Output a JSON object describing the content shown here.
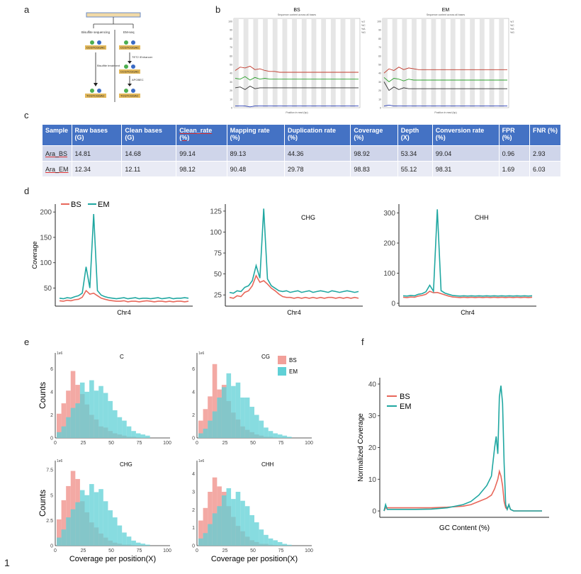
{
  "panels": {
    "a": "a",
    "b": "b",
    "c": "c",
    "d": "d",
    "e": "e",
    "f": "f"
  },
  "footnote": "1",
  "panel_a": {
    "left_title": "Bisulfite sequencing",
    "right_title": "EM-seq",
    "left_step": "Bisulfite treatment",
    "right_step1": "TET2 /Enhancer",
    "right_step2": "APOBEC",
    "seq1": "CCGTCGGAC",
    "seq2": "CCGTCGGAC",
    "seq3": "CCGTCGGAC",
    "seq4": "TCGTCGGAC",
    "seq5": "TCGTCGGAC"
  },
  "table": {
    "headers": [
      "Sample",
      "Raw bases (G)",
      "Clean bases (G)",
      "Clean_rate (%)",
      "Mapping rate (%)",
      "Duplication rate (%)",
      "Coverage (%)",
      "Depth (X)",
      "Conversion rate (%)",
      "FPR (%)",
      "FNR (%)"
    ],
    "rows": [
      [
        "Ara_BS",
        "14.81",
        "14.68",
        "99.14",
        "89.13",
        "44.36",
        "98.92",
        "53.34",
        "99.04",
        "0.96",
        "2.93"
      ],
      [
        "Ara_EM",
        "12.34",
        "12.11",
        "98.12",
        "90.48",
        "29.78",
        "98.83",
        "55.12",
        "98.31",
        "1.69",
        "6.03"
      ]
    ]
  },
  "chart_data": [
    {
      "panel": "b",
      "type": "line",
      "title": "BS",
      "subtitle": "Sequence content across all bases",
      "xlabel": "Position in read (bp)",
      "yticks": [
        "100",
        "90",
        "80",
        "70",
        "60",
        "50",
        "40",
        "30",
        "20",
        "10",
        "0"
      ],
      "ylim": [
        0,
        100
      ],
      "legend": [
        "%T",
        "%C",
        "%A",
        "%G"
      ],
      "series": [
        {
          "name": "red",
          "color": "#c0392b",
          "values": [
            43,
            47,
            46,
            48,
            44,
            45,
            43,
            42,
            42,
            41,
            41,
            41,
            41,
            41,
            41,
            41,
            41,
            41,
            41,
            41,
            41,
            41,
            41,
            41,
            41,
            41
          ]
        },
        {
          "name": "green",
          "color": "#2ca02c",
          "values": [
            34,
            33,
            36,
            32,
            35,
            33,
            34,
            33,
            33,
            33,
            33,
            33,
            33,
            33,
            33,
            33,
            33,
            33,
            33,
            33,
            33,
            33,
            33,
            33,
            33,
            33
          ]
        },
        {
          "name": "black",
          "color": "#333333",
          "values": [
            23,
            24,
            21,
            25,
            22,
            23,
            23,
            23,
            23,
            23,
            23,
            23,
            23,
            23,
            23,
            23,
            23,
            23,
            23,
            23,
            23,
            23,
            23,
            23,
            23,
            23
          ]
        },
        {
          "name": "blue",
          "color": "#2b3fb5",
          "values": [
            2,
            2,
            2,
            1,
            2,
            2,
            2,
            2,
            2,
            2,
            2,
            2,
            2,
            2,
            2,
            2,
            2,
            2,
            2,
            2,
            2,
            2,
            2,
            2,
            2,
            2
          ]
        }
      ]
    },
    {
      "panel": "b",
      "type": "line",
      "title": "EM",
      "subtitle": "Sequence content across all bases",
      "xlabel": "Position in read (bp)",
      "yticks": [
        "100",
        "90",
        "80",
        "70",
        "60",
        "50",
        "40",
        "30",
        "20",
        "10",
        "0"
      ],
      "ylim": [
        0,
        100
      ],
      "legend": [
        "%T",
        "%C",
        "%A",
        "%G"
      ],
      "series": [
        {
          "name": "red",
          "color": "#c0392b",
          "values": [
            40,
            45,
            43,
            47,
            44,
            46,
            45,
            44,
            44,
            44,
            44,
            44,
            44,
            44,
            44,
            44,
            44,
            44,
            44,
            44,
            44,
            44,
            44,
            44,
            44,
            44
          ]
        },
        {
          "name": "green",
          "color": "#2ca02c",
          "values": [
            35,
            30,
            34,
            33,
            31,
            33,
            32,
            32,
            32,
            32,
            32,
            32,
            32,
            32,
            32,
            32,
            32,
            32,
            32,
            32,
            32,
            32,
            32,
            32,
            32,
            32
          ]
        },
        {
          "name": "black",
          "color": "#333333",
          "values": [
            30,
            20,
            24,
            21,
            23,
            22,
            22,
            22,
            22,
            22,
            22,
            22,
            22,
            22,
            22,
            22,
            22,
            22,
            22,
            22,
            22,
            22,
            22,
            22,
            22,
            22
          ]
        },
        {
          "name": "blue",
          "color": "#2b3fb5",
          "values": [
            2,
            3,
            2,
            2,
            2,
            2,
            2,
            2,
            2,
            2,
            2,
            2,
            2,
            2,
            2,
            2,
            2,
            2,
            2,
            2,
            2,
            2,
            2,
            2,
            2,
            2
          ]
        }
      ]
    },
    {
      "panel": "d",
      "type": "line",
      "title": "",
      "xlabel": "Chr4",
      "ylabel": "Coverage",
      "ylim": [
        20,
        210
      ],
      "yticks": [
        50,
        100,
        150,
        200
      ],
      "legend": [
        "BS",
        "EM"
      ],
      "series": [
        {
          "name": "BS",
          "color": "#e8675a",
          "values": [
            25,
            24,
            26,
            25,
            27,
            28,
            32,
            45,
            38,
            40,
            35,
            30,
            28,
            26,
            25,
            24,
            24,
            25,
            23,
            24,
            24,
            23,
            24,
            25,
            24,
            23,
            24,
            24,
            23,
            24,
            23,
            24,
            24,
            23,
            24
          ]
        },
        {
          "name": "EM",
          "color": "#1fa7a1",
          "values": [
            30,
            29,
            31,
            30,
            33,
            35,
            40,
            92,
            50,
            196,
            45,
            36,
            33,
            31,
            30,
            29,
            30,
            31,
            29,
            30,
            31,
            29,
            30,
            30,
            29,
            30,
            31,
            29,
            30,
            31,
            29,
            30,
            30,
            31,
            30
          ]
        }
      ]
    },
    {
      "panel": "d",
      "type": "line",
      "title": "CHG",
      "xlabel": "Chr4",
      "ylabel": "",
      "ylim": [
        15,
        130
      ],
      "yticks": [
        25,
        50,
        75,
        100,
        125
      ],
      "legend": [],
      "series": [
        {
          "name": "BS",
          "color": "#e8675a",
          "values": [
            22,
            21,
            24,
            23,
            28,
            30,
            36,
            48,
            40,
            42,
            38,
            33,
            30,
            26,
            23,
            22,
            22,
            21,
            22,
            21,
            22,
            21,
            22,
            21,
            22,
            21,
            22,
            22,
            21,
            22,
            21,
            22,
            21,
            22,
            21
          ]
        },
        {
          "name": "EM",
          "color": "#1fa7a1",
          "values": [
            28,
            27,
            30,
            29,
            34,
            36,
            42,
            60,
            45,
            128,
            44,
            36,
            33,
            30,
            29,
            30,
            28,
            29,
            30,
            28,
            29,
            30,
            28,
            29,
            30,
            29,
            28,
            30,
            29,
            28,
            29,
            30,
            29,
            28,
            29
          ]
        }
      ]
    },
    {
      "panel": "d",
      "type": "line",
      "title": "CHH",
      "xlabel": "Chr4",
      "ylabel": "",
      "ylim": [
        0,
        320
      ],
      "yticks": [
        0,
        100,
        200,
        300
      ],
      "legend": [],
      "series": [
        {
          "name": "BS",
          "color": "#e8675a",
          "values": [
            20,
            19,
            21,
            20,
            24,
            26,
            30,
            40,
            35,
            36,
            32,
            28,
            24,
            21,
            20,
            19,
            20,
            19,
            20,
            19,
            20,
            19,
            20,
            19,
            20,
            19,
            20,
            19,
            20,
            19,
            20,
            19,
            20,
            19,
            20
          ]
        },
        {
          "name": "EM",
          "color": "#1fa7a1",
          "values": [
            25,
            24,
            26,
            25,
            30,
            32,
            38,
            60,
            40,
            312,
            42,
            34,
            30,
            26,
            25,
            24,
            25,
            24,
            25,
            24,
            25,
            24,
            25,
            24,
            25,
            24,
            25,
            24,
            25,
            24,
            25,
            24,
            25,
            24,
            25
          ]
        }
      ]
    },
    {
      "panel": "e",
      "type": "bar",
      "title": "C",
      "exponent": "1e6",
      "xlabel": "",
      "ylabel": "Counts",
      "xlim": [
        0,
        100
      ],
      "ylim": [
        0,
        7
      ],
      "yticks": [
        0,
        2,
        4,
        6
      ],
      "xticks": [
        0,
        25,
        50,
        75,
        100
      ],
      "legend": [
        "BS",
        "EM"
      ],
      "series": [
        {
          "name": "BS",
          "color": "#f2a09a",
          "values": [
            2.1,
            3.0,
            4.1,
            5.8,
            4.6,
            3.8,
            2.9,
            2.0,
            1.6,
            1.0,
            0.9,
            0.6,
            0.4,
            0.3,
            0.2,
            0.1,
            0.1,
            0.05,
            0.03,
            0.02
          ]
        },
        {
          "name": "EM",
          "color": "#5fd0d6",
          "values": [
            0.5,
            1.0,
            1.8,
            2.6,
            3.0,
            4.8,
            4.0,
            5.0,
            4.1,
            4.5,
            3.9,
            3.2,
            2.4,
            1.8,
            1.5,
            1.0,
            0.6,
            0.4,
            0.3,
            0.2
          ]
        }
      ]
    },
    {
      "panel": "e",
      "type": "bar",
      "title": "CG",
      "exponent": "1e6",
      "xlabel": "",
      "ylabel": "",
      "xlim": [
        0,
        100
      ],
      "ylim": [
        0,
        7
      ],
      "yticks": [
        0,
        2,
        4,
        6
      ],
      "xticks": [
        0,
        25,
        50,
        75,
        100
      ],
      "legend": [
        "BS",
        "EM"
      ],
      "series": [
        {
          "name": "BS",
          "color": "#f2a09a",
          "values": [
            1.5,
            2.5,
            3.6,
            6.4,
            4.2,
            4.6,
            3.2,
            2.2,
            1.6,
            1.0,
            0.7,
            0.5,
            0.3,
            0.2,
            0.1,
            0.1,
            0.05,
            0.03,
            0.02,
            0.01
          ]
        },
        {
          "name": "EM",
          "color": "#5fd0d6",
          "values": [
            0.4,
            0.8,
            1.5,
            2.3,
            3.5,
            4.4,
            5.6,
            4.5,
            4.8,
            3.5,
            3.5,
            2.7,
            2.0,
            1.5,
            0.9,
            0.6,
            0.4,
            0.3,
            0.2,
            0.1
          ]
        }
      ]
    },
    {
      "panel": "e",
      "type": "bar",
      "title": "CHG",
      "exponent": "1e6",
      "xlabel": "Coverage per position(X)",
      "ylabel": "Counts",
      "xlim": [
        0,
        100
      ],
      "ylim": [
        0,
        8
      ],
      "yticks": [
        0,
        2.5,
        5.0,
        7.5
      ],
      "xticks": [
        0,
        25,
        50,
        75,
        100
      ],
      "legend": [],
      "series": [
        {
          "name": "BS",
          "color": "#f2a09a",
          "values": [
            2.6,
            4.5,
            5.9,
            7.4,
            6.6,
            4.4,
            3.3,
            2.3,
            1.8,
            1.2,
            0.8,
            0.5,
            0.3,
            0.2,
            0.1,
            0.1,
            0.05,
            0.03,
            0.02,
            0.01
          ]
        },
        {
          "name": "EM",
          "color": "#5fd0d6",
          "values": [
            0.8,
            1.6,
            2.8,
            3.6,
            4.3,
            5.5,
            5.0,
            6.1,
            5.3,
            5.6,
            4.4,
            3.5,
            2.8,
            2.0,
            1.3,
            0.9,
            0.5,
            0.3,
            0.2,
            0.1
          ]
        }
      ]
    },
    {
      "panel": "e",
      "type": "bar",
      "title": "CHH",
      "exponent": "1e6",
      "xlabel": "Coverage per position(X)",
      "ylabel": "",
      "xlim": [
        0,
        100
      ],
      "ylim": [
        0,
        4.5
      ],
      "yticks": [
        0,
        1,
        2,
        3,
        4
      ],
      "xticks": [
        0,
        25,
        50,
        75,
        100
      ],
      "legend": [],
      "series": [
        {
          "name": "BS",
          "color": "#f2a09a",
          "values": [
            1.4,
            2.1,
            3.0,
            3.8,
            3.3,
            3.0,
            2.2,
            1.6,
            1.1,
            0.8,
            0.5,
            0.3,
            0.2,
            0.1,
            0.1,
            0.05,
            0.03,
            0.02,
            0.01,
            0.01
          ]
        },
        {
          "name": "EM",
          "color": "#5fd0d6",
          "values": [
            0.4,
            0.7,
            1.2,
            1.8,
            2.2,
            2.8,
            3.2,
            2.6,
            3.0,
            2.5,
            2.2,
            1.7,
            1.3,
            0.9,
            0.6,
            0.4,
            0.3,
            0.2,
            0.1,
            0.05
          ]
        }
      ]
    },
    {
      "panel": "f",
      "type": "line",
      "title": "",
      "xlabel": "GC Content (%)",
      "ylabel": "Normalized Coverage",
      "xlim": [
        0,
        100
      ],
      "ylim": [
        -2,
        42
      ],
      "yticks": [
        0,
        10,
        20,
        30,
        40
      ],
      "legend": [
        "BS",
        "EM"
      ],
      "series": [
        {
          "name": "BS",
          "color": "#e8675a",
          "x": [
            0,
            1,
            2,
            5,
            10,
            20,
            30,
            40,
            50,
            55,
            60,
            65,
            68,
            70,
            72,
            73,
            74,
            75,
            76,
            77,
            78,
            79,
            80,
            82,
            85,
            90,
            100
          ],
          "values": [
            0,
            1,
            1,
            1,
            1,
            1,
            1,
            1.2,
            1.5,
            2,
            3,
            4,
            5,
            7,
            10,
            12.5,
            11,
            8,
            3,
            1,
            0.5,
            2,
            0.5,
            0,
            0,
            0,
            0
          ]
        },
        {
          "name": "EM",
          "color": "#1fa7a1",
          "x": [
            0,
            1,
            2,
            5,
            10,
            20,
            30,
            40,
            50,
            55,
            60,
            65,
            68,
            70,
            71,
            72,
            73,
            74,
            75,
            76,
            77,
            78,
            79,
            80,
            82,
            85,
            90,
            100
          ],
          "values": [
            0,
            2,
            0.5,
            0.5,
            0.5,
            0.5,
            0.6,
            1,
            2,
            3,
            5,
            8,
            11,
            20,
            23.5,
            18,
            36,
            39.5,
            34,
            15,
            2,
            0.5,
            2,
            0.5,
            0,
            0,
            0,
            0
          ]
        }
      ]
    }
  ]
}
